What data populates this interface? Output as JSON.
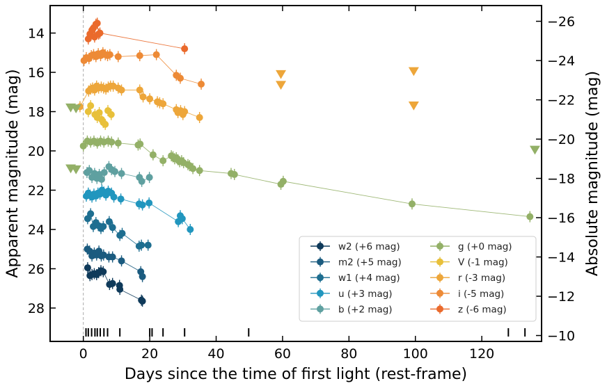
{
  "chart_data": {
    "type": "scatter",
    "xlabel": "Days since the time of first light (rest-frame)",
    "ylabel_left": "Apparent magnitude (mag)",
    "ylabel_right": "Absolute magnitude (mag)",
    "xlim": [
      -10,
      138
    ],
    "ylim_left": [
      12.6,
      29.7
    ],
    "ylim_right": [
      -26.8,
      -9.7
    ],
    "y_inverted": true,
    "x_ticks": [
      0,
      20,
      40,
      60,
      80,
      100,
      120
    ],
    "y_ticks_left": [
      14,
      16,
      18,
      20,
      22,
      24,
      26,
      28
    ],
    "y_ticks_right": [
      -26,
      -24,
      -22,
      -20,
      -18,
      -16,
      -14,
      -12,
      -10
    ],
    "first_light_line_x": 0,
    "legend_position": "lower-right",
    "epoch_markers_x": [
      0.8,
      1.5,
      2.5,
      3.5,
      4.2,
      5.1,
      6.2,
      7.3,
      11,
      20,
      20.7,
      24,
      30.5,
      49.8,
      128,
      133
    ],
    "series": [
      {
        "name": "w2 (+6 mag)",
        "color": "#0f3a5a",
        "line": true,
        "x": [
          1.3,
          2.0,
          2.6,
          3.3,
          4.0,
          4.6,
          5.3,
          6.0,
          7.9,
          8.8,
          10.9,
          11.0,
          17.5,
          17.8
        ],
        "y": [
          25.95,
          26.35,
          26.3,
          26.25,
          26.3,
          26.2,
          26.1,
          26.15,
          26.8,
          26.75,
          26.85,
          27.05,
          27.6,
          27.65
        ]
      },
      {
        "name": "m2 (+5 mag)",
        "color": "#1b5b7f",
        "line": true,
        "x": [
          1.2,
          1.9,
          2.6,
          3.3,
          4.0,
          4.7,
          5.4,
          6.1,
          7.7,
          8.8,
          11.5,
          17.3,
          17.8
        ],
        "y": [
          25.0,
          25.1,
          25.35,
          25.2,
          25.3,
          25.1,
          25.35,
          25.3,
          25.4,
          25.4,
          25.6,
          26.15,
          26.4
        ]
      },
      {
        "name": "w1 (+4 mag)",
        "color": "#1e6e90",
        "line": true,
        "x": [
          1.3,
          2.2,
          3.0,
          3.8,
          4.5,
          5.3,
          6.0,
          7.8,
          8.8,
          11.0,
          11.7,
          16.8,
          17.5,
          19.5
        ],
        "y": [
          23.45,
          23.2,
          23.85,
          23.65,
          23.8,
          23.95,
          23.85,
          23.6,
          23.9,
          24.3,
          24.2,
          24.85,
          24.8,
          24.8
        ]
      },
      {
        "name": "u (+3 mag)",
        "color": "#2196be",
        "line": true,
        "x": [
          0.9,
          1.5,
          2.0,
          2.6,
          3.2,
          3.8,
          4.4,
          5.0,
          5.6,
          6.2,
          6.8,
          7.5,
          8.5,
          9.2,
          11.3,
          16.8,
          17.8,
          19.8,
          28.6,
          29.2,
          29.8,
          32.2
        ],
        "y": [
          22.3,
          22.15,
          22.25,
          22.35,
          22.2,
          22.3,
          22.15,
          22.2,
          22.0,
          22.1,
          22.25,
          22.05,
          22.15,
          22.35,
          22.45,
          22.7,
          22.75,
          22.65,
          23.6,
          23.3,
          23.45,
          24.0
        ]
      },
      {
        "name": "b (+2 mag)",
        "color": "#5fa0a0",
        "line": true,
        "x": [
          1.1,
          1.8,
          2.6,
          3.4,
          4.1,
          4.8,
          5.5,
          6.3,
          7.7,
          8.5,
          9.5,
          11.5,
          16.9,
          17.6,
          19.9
        ],
        "y": [
          21.1,
          21.0,
          21.35,
          21.15,
          21.4,
          21.2,
          21.45,
          21.1,
          20.8,
          20.95,
          21.05,
          21.15,
          21.35,
          21.55,
          21.35
        ]
      },
      {
        "name": "g (+0 mag)",
        "color": "#93b067",
        "line": true,
        "x": [
          0.0,
          1.2,
          2.2,
          3.2,
          4.2,
          5.2,
          6.2,
          7.5,
          8.5,
          10.5,
          16.5,
          17.1,
          21.0,
          24.0,
          26.5,
          27.0,
          27.5,
          28.0,
          28.5,
          29.0,
          29.6,
          30.2,
          31.5,
          32.0,
          33.0,
          35.0,
          44.5,
          45.5,
          59.5,
          60.2,
          99.0,
          134.5
        ],
        "y": [
          19.75,
          19.5,
          19.55,
          19.5,
          19.6,
          19.5,
          19.55,
          19.5,
          19.55,
          19.6,
          19.7,
          19.65,
          20.2,
          20.5,
          20.25,
          20.3,
          20.4,
          20.35,
          20.45,
          20.55,
          20.5,
          20.6,
          20.7,
          20.75,
          20.9,
          21.0,
          21.15,
          21.2,
          21.7,
          21.55,
          22.7,
          23.35
        ]
      },
      {
        "name": "V (-1 mag)",
        "color": "#e8c03a",
        "line": false,
        "x": [
          1.5,
          2.2,
          3.5,
          4.2,
          4.8,
          5.5,
          6.0,
          6.6,
          7.4,
          8.4
        ],
        "y": [
          18.0,
          17.7,
          18.15,
          18.3,
          18.05,
          18.4,
          18.55,
          18.65,
          17.95,
          18.15
        ]
      },
      {
        "name": "r (-3 mag)",
        "color": "#eda63a",
        "line": true,
        "x": [
          -1.0,
          1.6,
          2.2,
          2.8,
          3.4,
          4.0,
          4.6,
          5.4,
          6.1,
          6.8,
          7.5,
          8.2,
          9.0,
          10.5,
          11.5,
          17.0,
          18.0,
          20.0,
          22.3,
          23.0,
          24.0,
          28.0,
          28.5,
          29.3,
          30.0,
          30.5,
          35.0
        ],
        "y": [
          17.75,
          16.95,
          16.85,
          16.8,
          16.9,
          16.7,
          16.8,
          16.75,
          16.8,
          16.85,
          16.75,
          16.7,
          16.7,
          16.8,
          16.9,
          16.9,
          17.25,
          17.35,
          17.5,
          17.55,
          17.6,
          17.9,
          18.05,
          17.95,
          18.15,
          18.0,
          18.3
        ]
      },
      {
        "name": "i (-5 mag)",
        "color": "#ed8a36",
        "line": true,
        "x": [
          0.2,
          0.9,
          1.7,
          2.4,
          3.1,
          3.8,
          4.5,
          5.2,
          5.9,
          6.6,
          7.3,
          8.0,
          10.5,
          17.0,
          22.0,
          28.0,
          29.2,
          35.5
        ],
        "y": [
          15.4,
          15.25,
          15.3,
          15.15,
          15.1,
          15.2,
          15.05,
          15.15,
          15.0,
          15.1,
          15.15,
          15.1,
          15.2,
          15.15,
          15.1,
          16.15,
          16.3,
          16.6
        ]
      },
      {
        "name": "z (-6 mag)",
        "color": "#ea6a2c",
        "line": true,
        "x": [
          1.5,
          2.0,
          2.6,
          3.0,
          3.4,
          3.8,
          4.2,
          4.6,
          5.0,
          30.5
        ],
        "y": [
          14.3,
          14.05,
          13.85,
          13.75,
          14.2,
          13.55,
          13.5,
          14.05,
          14.0,
          14.8
        ]
      }
    ],
    "upper_limits": [
      {
        "band": "r",
        "color": "#eda63a",
        "x": [
          59.5,
          59.5,
          99.5,
          99.5
        ],
        "y": [
          16.1,
          16.65,
          15.95,
          17.7
        ]
      },
      {
        "band": "g",
        "color": "#93b067",
        "x": [
          -3.8,
          -2.2,
          136.0
        ],
        "y": [
          17.8,
          17.85,
          19.95
        ]
      },
      {
        "band": "b",
        "color": "#93b067",
        "x": [
          -3.8,
          -2.2
        ],
        "y": [
          20.9,
          20.95
        ]
      }
    ]
  }
}
